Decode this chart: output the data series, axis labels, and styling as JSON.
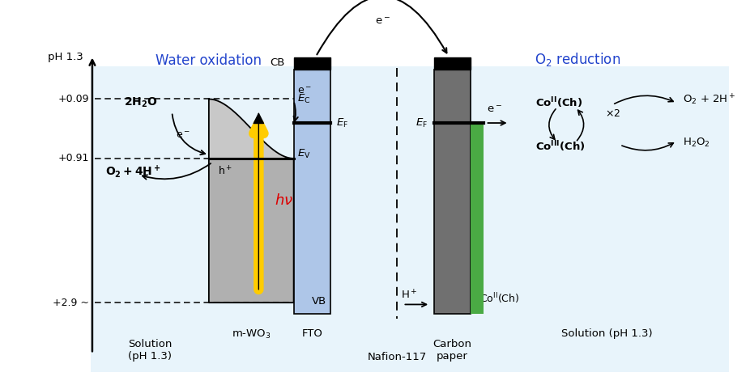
{
  "fig_width": 9.26,
  "fig_height": 4.76,
  "bg_color": "#ffffff",
  "panel_bg": "#e8f4fb",
  "fto_color": "#aec6e8",
  "mwo3_light": "#c8c8c8",
  "mwo3_vb": "#b0b0b0",
  "carbon_color": "#707070",
  "green_stripe": "#4aaa44",
  "title_left": "Water oxidation",
  "title_right": "O$_2$ reduction",
  "title_color": "#2244cc",
  "hv_color": "#ffcc00",
  "hv_text_color": "#dd0000",
  "solution_label_left": "Solution\n(pH 1.3)",
  "solution_label_right": "Solution (pH 1.3)",
  "mwo3_label": "m-WO$_3$",
  "fto_label": "FTO",
  "carbon_label": "Carbon\npaper",
  "nafion_label": "Nafion-117",
  "cb_label": "CB",
  "vb_label": "VB",
  "level_labels": [
    "+0.09",
    "+0.91",
    "+2.9 ~"
  ],
  "level_voltages": [
    0.09,
    0.91,
    2.9
  ],
  "ylabel_text": "pH 1.3"
}
